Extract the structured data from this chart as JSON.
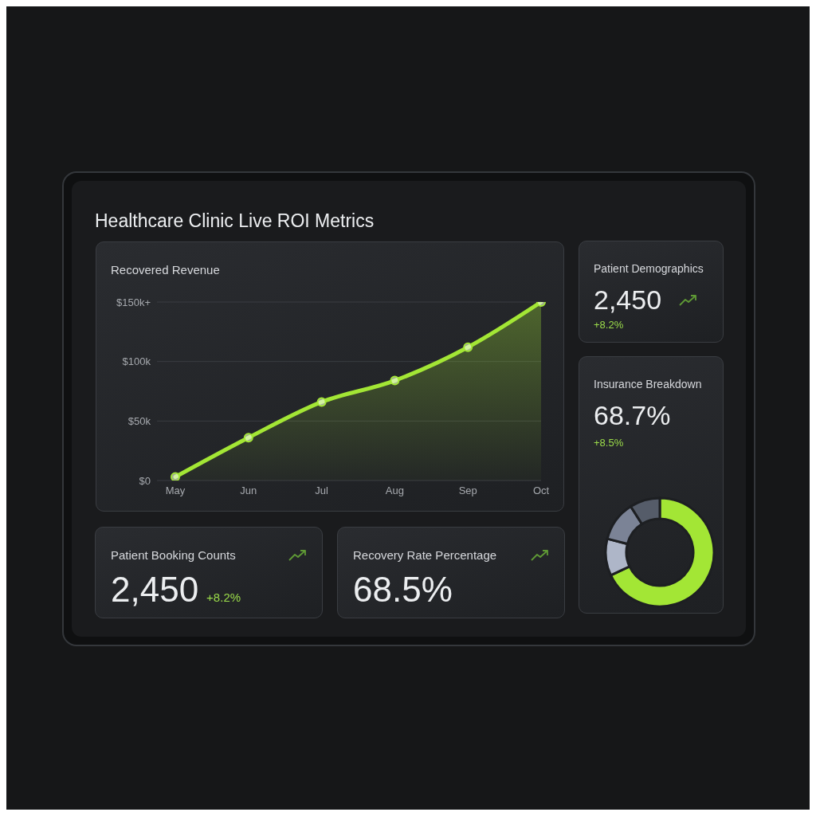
{
  "chart_data": [
    {
      "type": "other",
      "title": "Healthcare Clinic Live ROI Metrics"
    },
    {
      "type": "area",
      "title": "Recovered Revenue",
      "categories": [
        "May",
        "Jun",
        "Jul",
        "Aug",
        "Sep",
        "Oct"
      ],
      "series": [
        {
          "color": "#a3e635",
          "values": [
            3,
            36,
            66,
            84,
            112,
            150
          ]
        }
      ],
      "ylim": [
        0,
        150
      ],
      "yticks": [
        {
          "value": 0,
          "label": "$0"
        },
        {
          "value": 50,
          "label": "$50k"
        },
        {
          "value": 100,
          "label": "$100k"
        },
        {
          "value": 150,
          "label": "$150k+"
        }
      ],
      "grid": "y",
      "marker": "circle",
      "legend": false
    },
    {
      "type": "other",
      "title": "Patient Demographics",
      "annotations": [
        "2,450",
        "+8.2%"
      ]
    },
    {
      "type": "donut",
      "title": "Insurance Breakdown",
      "annotations": [
        "68.7%",
        "+8.5%"
      ],
      "categories": [
        null,
        null,
        null,
        null
      ],
      "values": [
        68,
        11,
        12,
        9
      ],
      "colors": [
        "#a3e635",
        "#aeb6c8",
        "#7b8396",
        "#555c69"
      ],
      "legend": false
    },
    {
      "type": "other",
      "title": "Patient Booking Counts",
      "annotations": [
        "2,450",
        "+8.2%"
      ]
    },
    {
      "type": "other",
      "title": "Recovery Rate Percentage",
      "annotations": [
        "68.5%"
      ]
    }
  ]
}
